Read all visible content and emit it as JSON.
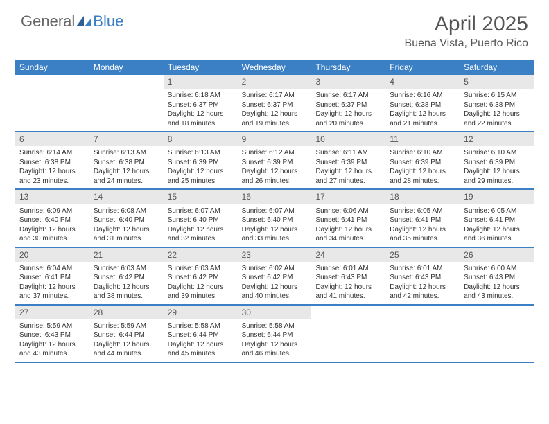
{
  "logo": {
    "general": "General",
    "blue": "Blue"
  },
  "title": "April 2025",
  "location": "Buena Vista, Puerto Rico",
  "colors": {
    "header_bg": "#3b7fc4",
    "header_text": "#ffffff",
    "daynum_bg": "#e8e8e8",
    "text": "#333333",
    "title_color": "#555555"
  },
  "day_names": [
    "Sunday",
    "Monday",
    "Tuesday",
    "Wednesday",
    "Thursday",
    "Friday",
    "Saturday"
  ],
  "weeks": [
    [
      null,
      null,
      {
        "n": "1",
        "sr": "6:18 AM",
        "ss": "6:37 PM",
        "dl": "12 hours and 18 minutes."
      },
      {
        "n": "2",
        "sr": "6:17 AM",
        "ss": "6:37 PM",
        "dl": "12 hours and 19 minutes."
      },
      {
        "n": "3",
        "sr": "6:17 AM",
        "ss": "6:37 PM",
        "dl": "12 hours and 20 minutes."
      },
      {
        "n": "4",
        "sr": "6:16 AM",
        "ss": "6:38 PM",
        "dl": "12 hours and 21 minutes."
      },
      {
        "n": "5",
        "sr": "6:15 AM",
        "ss": "6:38 PM",
        "dl": "12 hours and 22 minutes."
      }
    ],
    [
      {
        "n": "6",
        "sr": "6:14 AM",
        "ss": "6:38 PM",
        "dl": "12 hours and 23 minutes."
      },
      {
        "n": "7",
        "sr": "6:13 AM",
        "ss": "6:38 PM",
        "dl": "12 hours and 24 minutes."
      },
      {
        "n": "8",
        "sr": "6:13 AM",
        "ss": "6:39 PM",
        "dl": "12 hours and 25 minutes."
      },
      {
        "n": "9",
        "sr": "6:12 AM",
        "ss": "6:39 PM",
        "dl": "12 hours and 26 minutes."
      },
      {
        "n": "10",
        "sr": "6:11 AM",
        "ss": "6:39 PM",
        "dl": "12 hours and 27 minutes."
      },
      {
        "n": "11",
        "sr": "6:10 AM",
        "ss": "6:39 PM",
        "dl": "12 hours and 28 minutes."
      },
      {
        "n": "12",
        "sr": "6:10 AM",
        "ss": "6:39 PM",
        "dl": "12 hours and 29 minutes."
      }
    ],
    [
      {
        "n": "13",
        "sr": "6:09 AM",
        "ss": "6:40 PM",
        "dl": "12 hours and 30 minutes."
      },
      {
        "n": "14",
        "sr": "6:08 AM",
        "ss": "6:40 PM",
        "dl": "12 hours and 31 minutes."
      },
      {
        "n": "15",
        "sr": "6:07 AM",
        "ss": "6:40 PM",
        "dl": "12 hours and 32 minutes."
      },
      {
        "n": "16",
        "sr": "6:07 AM",
        "ss": "6:40 PM",
        "dl": "12 hours and 33 minutes."
      },
      {
        "n": "17",
        "sr": "6:06 AM",
        "ss": "6:41 PM",
        "dl": "12 hours and 34 minutes."
      },
      {
        "n": "18",
        "sr": "6:05 AM",
        "ss": "6:41 PM",
        "dl": "12 hours and 35 minutes."
      },
      {
        "n": "19",
        "sr": "6:05 AM",
        "ss": "6:41 PM",
        "dl": "12 hours and 36 minutes."
      }
    ],
    [
      {
        "n": "20",
        "sr": "6:04 AM",
        "ss": "6:41 PM",
        "dl": "12 hours and 37 minutes."
      },
      {
        "n": "21",
        "sr": "6:03 AM",
        "ss": "6:42 PM",
        "dl": "12 hours and 38 minutes."
      },
      {
        "n": "22",
        "sr": "6:03 AM",
        "ss": "6:42 PM",
        "dl": "12 hours and 39 minutes."
      },
      {
        "n": "23",
        "sr": "6:02 AM",
        "ss": "6:42 PM",
        "dl": "12 hours and 40 minutes."
      },
      {
        "n": "24",
        "sr": "6:01 AM",
        "ss": "6:43 PM",
        "dl": "12 hours and 41 minutes."
      },
      {
        "n": "25",
        "sr": "6:01 AM",
        "ss": "6:43 PM",
        "dl": "12 hours and 42 minutes."
      },
      {
        "n": "26",
        "sr": "6:00 AM",
        "ss": "6:43 PM",
        "dl": "12 hours and 43 minutes."
      }
    ],
    [
      {
        "n": "27",
        "sr": "5:59 AM",
        "ss": "6:43 PM",
        "dl": "12 hours and 43 minutes."
      },
      {
        "n": "28",
        "sr": "5:59 AM",
        "ss": "6:44 PM",
        "dl": "12 hours and 44 minutes."
      },
      {
        "n": "29",
        "sr": "5:58 AM",
        "ss": "6:44 PM",
        "dl": "12 hours and 45 minutes."
      },
      {
        "n": "30",
        "sr": "5:58 AM",
        "ss": "6:44 PM",
        "dl": "12 hours and 46 minutes."
      },
      null,
      null,
      null
    ]
  ],
  "labels": {
    "sunrise": "Sunrise:",
    "sunset": "Sunset:",
    "daylight": "Daylight:"
  }
}
